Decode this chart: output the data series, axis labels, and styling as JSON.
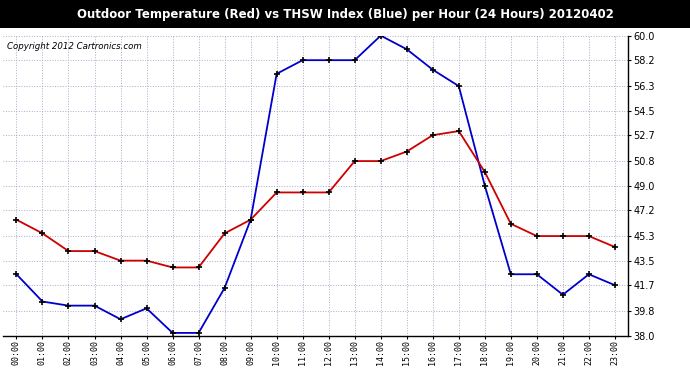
{
  "title": "Outdoor Temperature (Red) vs THSW Index (Blue) per Hour (24 Hours) 20120402",
  "copyright": "Copyright 2012 Cartronics.com",
  "hours": [
    0,
    1,
    2,
    3,
    4,
    5,
    6,
    7,
    8,
    9,
    10,
    11,
    12,
    13,
    14,
    15,
    16,
    17,
    18,
    19,
    20,
    21,
    22,
    23
  ],
  "hour_labels": [
    "00:00",
    "01:00",
    "02:00",
    "03:00",
    "04:00",
    "05:00",
    "06:00",
    "07:00",
    "08:00",
    "09:00",
    "10:00",
    "11:00",
    "12:00",
    "13:00",
    "14:00",
    "15:00",
    "16:00",
    "17:00",
    "18:00",
    "19:00",
    "20:00",
    "21:00",
    "22:00",
    "23:00"
  ],
  "temp_red": [
    46.5,
    45.5,
    44.2,
    44.2,
    43.5,
    43.5,
    43.0,
    43.0,
    45.5,
    46.5,
    48.5,
    48.5,
    48.5,
    50.8,
    50.8,
    51.5,
    52.7,
    53.0,
    50.0,
    46.2,
    45.3,
    45.3,
    45.3,
    44.5
  ],
  "thsw_blue": [
    42.5,
    40.5,
    40.2,
    40.2,
    39.2,
    40.0,
    38.2,
    38.2,
    41.5,
    46.5,
    57.2,
    58.2,
    58.2,
    58.2,
    60.0,
    59.0,
    57.5,
    56.3,
    49.0,
    42.5,
    42.5,
    41.0,
    42.5,
    41.7
  ],
  "ylim": [
    38.0,
    60.0
  ],
  "yticks": [
    38.0,
    39.8,
    41.7,
    43.5,
    45.3,
    47.2,
    49.0,
    50.8,
    52.7,
    54.5,
    56.3,
    58.2,
    60.0
  ],
  "red_color": "#cc0000",
  "blue_color": "#0000cc",
  "grid_color": "#aaaacc",
  "bg_color": "#ffffff",
  "title_bg": "#000000",
  "title_fg": "#ffffff",
  "plot_bg": "#ffffff"
}
